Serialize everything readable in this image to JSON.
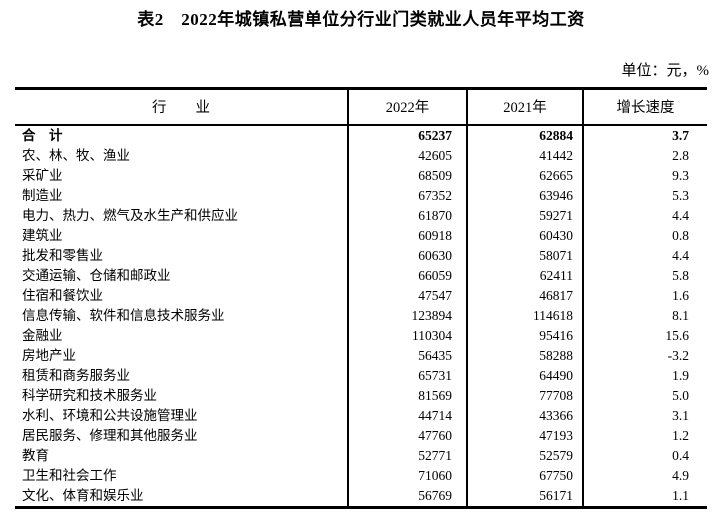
{
  "page": {
    "title": "表2　2022年城镇私营单位分行业门类就业人员年平均工资",
    "unit_note": "单位：元，%"
  },
  "colors": {
    "text": "#000000",
    "border": "#000000",
    "background": "#ffffff"
  },
  "table": {
    "headers": {
      "industry": "行　　业",
      "y2022": "2022年",
      "y2021": "2021年",
      "growth": "增长速度"
    },
    "rows": [
      {
        "industry": "合　计",
        "y2022": 65237,
        "y2021": 62884,
        "growth": "3.7",
        "bold": true
      },
      {
        "industry": "农、林、牧、渔业",
        "y2022": 42605,
        "y2021": 41442,
        "growth": "2.8",
        "bold": false
      },
      {
        "industry": "采矿业",
        "y2022": 68509,
        "y2021": 62665,
        "growth": "9.3",
        "bold": false
      },
      {
        "industry": "制造业",
        "y2022": 67352,
        "y2021": 63946,
        "growth": "5.3",
        "bold": false
      },
      {
        "industry": "电力、热力、燃气及水生产和供应业",
        "y2022": 61870,
        "y2021": 59271,
        "growth": "4.4",
        "bold": false
      },
      {
        "industry": "建筑业",
        "y2022": 60918,
        "y2021": 60430,
        "growth": "0.8",
        "bold": false
      },
      {
        "industry": "批发和零售业",
        "y2022": 60630,
        "y2021": 58071,
        "growth": "4.4",
        "bold": false
      },
      {
        "industry": "交通运输、仓储和邮政业",
        "y2022": 66059,
        "y2021": 62411,
        "growth": "5.8",
        "bold": false
      },
      {
        "industry": "住宿和餐饮业",
        "y2022": 47547,
        "y2021": 46817,
        "growth": "1.6",
        "bold": false
      },
      {
        "industry": "信息传输、软件和信息技术服务业",
        "y2022": 123894,
        "y2021": 114618,
        "growth": "8.1",
        "bold": false
      },
      {
        "industry": "金融业",
        "y2022": 110304,
        "y2021": 95416,
        "growth": "15.6",
        "bold": false
      },
      {
        "industry": "房地产业",
        "y2022": 56435,
        "y2021": 58288,
        "growth": "-3.2",
        "bold": false
      },
      {
        "industry": "租赁和商务服务业",
        "y2022": 65731,
        "y2021": 64490,
        "growth": "1.9",
        "bold": false
      },
      {
        "industry": "科学研究和技术服务业",
        "y2022": 81569,
        "y2021": 77708,
        "growth": "5.0",
        "bold": false
      },
      {
        "industry": "水利、环境和公共设施管理业",
        "y2022": 44714,
        "y2021": 43366,
        "growth": "3.1",
        "bold": false
      },
      {
        "industry": "居民服务、修理和其他服务业",
        "y2022": 47760,
        "y2021": 47193,
        "growth": "1.2",
        "bold": false
      },
      {
        "industry": "教育",
        "y2022": 52771,
        "y2021": 52579,
        "growth": "0.4",
        "bold": false
      },
      {
        "industry": "卫生和社会工作",
        "y2022": 71060,
        "y2021": 67750,
        "growth": "4.9",
        "bold": false
      },
      {
        "industry": "文化、体育和娱乐业",
        "y2022": 56769,
        "y2021": 56171,
        "growth": "1.1",
        "bold": false
      }
    ]
  }
}
